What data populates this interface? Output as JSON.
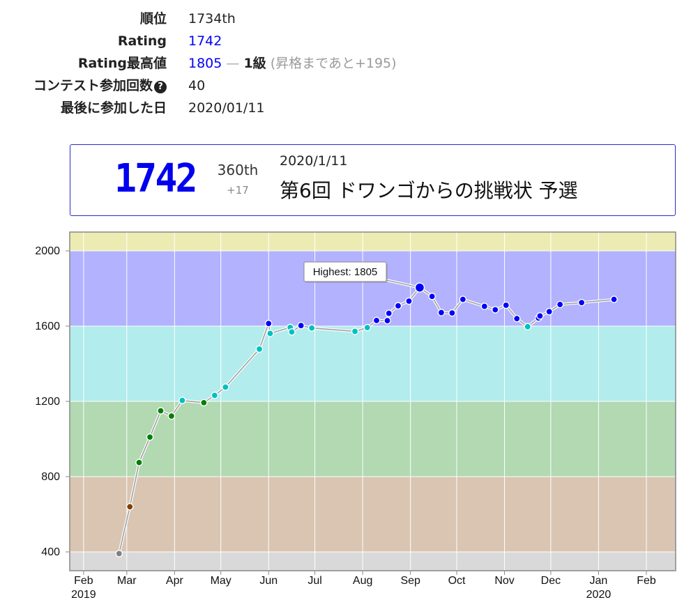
{
  "stats": {
    "rank_label": "順位",
    "rank_value": "1734th",
    "rating_label": "Rating",
    "rating_value": "1742",
    "highest_label": "Rating最高値",
    "highest_value": "1805",
    "highest_dash": "—",
    "highest_grade": "1級",
    "highest_note": "(昇格まであと+195)",
    "contests_label": "コンテスト参加回数",
    "contests_help": "?",
    "contests_value": "40",
    "last_label": "最後に参加した日",
    "last_value": "2020/01/11"
  },
  "card": {
    "rating": "1742",
    "rank": "360th",
    "diff": "+17",
    "date": "2020/1/11",
    "contest": "第6回 ドワンゴからの挑戦状 予選"
  },
  "colors": {
    "gray": "#808080",
    "brown": "#804000",
    "green": "#008000",
    "cyan": "#00c0c0",
    "blue": "#0000ff",
    "yellow": "#c0c000",
    "band_gray": "#d9d9d9",
    "band_brown": "#d9c5b2",
    "band_green": "#b2d9b2",
    "band_cyan": "#b2ecec",
    "band_blue": "#b2b2ff",
    "band_yellow": "#ececb2",
    "card_border": "#2a2ac8"
  },
  "chart_data": {
    "type": "line",
    "ylim": [
      300,
      2100
    ],
    "yticks": [
      400,
      800,
      1200,
      1600,
      2000
    ],
    "x_range": [
      "2019-01-23",
      "2020-02-20"
    ],
    "xticks": [
      {
        "date": "2019-02-01",
        "label": "Feb",
        "year": "2019"
      },
      {
        "date": "2019-03-01",
        "label": "Mar",
        "year": ""
      },
      {
        "date": "2019-04-01",
        "label": "Apr",
        "year": ""
      },
      {
        "date": "2019-05-01",
        "label": "May",
        "year": ""
      },
      {
        "date": "2019-06-01",
        "label": "Jun",
        "year": ""
      },
      {
        "date": "2019-07-01",
        "label": "Jul",
        "year": ""
      },
      {
        "date": "2019-08-01",
        "label": "Aug",
        "year": ""
      },
      {
        "date": "2019-09-01",
        "label": "Sep",
        "year": ""
      },
      {
        "date": "2019-10-01",
        "label": "Oct",
        "year": ""
      },
      {
        "date": "2019-11-01",
        "label": "Nov",
        "year": ""
      },
      {
        "date": "2019-12-01",
        "label": "Dec",
        "year": ""
      },
      {
        "date": "2020-01-01",
        "label": "Jan",
        "year": "2020"
      },
      {
        "date": "2020-02-01",
        "label": "Feb",
        "year": ""
      }
    ],
    "bands": [
      {
        "from": 0,
        "to": 400,
        "color": "#d9d9d9"
      },
      {
        "from": 400,
        "to": 800,
        "color": "#d9c5b2"
      },
      {
        "from": 800,
        "to": 1200,
        "color": "#b2d9b2"
      },
      {
        "from": 1200,
        "to": 1600,
        "color": "#b2ecec"
      },
      {
        "from": 1600,
        "to": 2000,
        "color": "#b2b2ff"
      },
      {
        "from": 2000,
        "to": 2400,
        "color": "#ececb2"
      }
    ],
    "highest": {
      "date": "2019-09-07",
      "value": 1805,
      "label": "Highest: 1805"
    },
    "series": [
      {
        "points": [
          {
            "date": "2019-02-24",
            "value": 391
          },
          {
            "date": "2019-03-03",
            "value": 640
          },
          {
            "date": "2019-03-09",
            "value": 875
          },
          {
            "date": "2019-03-16",
            "value": 1010
          },
          {
            "date": "2019-03-23",
            "value": 1150
          },
          {
            "date": "2019-03-30",
            "value": 1122
          },
          {
            "date": "2019-04-06",
            "value": 1205
          },
          {
            "date": "2019-04-20",
            "value": 1193
          },
          {
            "date": "2019-04-27",
            "value": 1232
          },
          {
            "date": "2019-05-04",
            "value": 1276
          },
          {
            "date": "2019-05-26",
            "value": 1478
          },
          {
            "date": "2019-06-01",
            "value": 1614
          },
          {
            "date": "2019-06-02",
            "value": 1561
          },
          {
            "date": "2019-06-15",
            "value": 1593
          },
          {
            "date": "2019-06-16",
            "value": 1569
          },
          {
            "date": "2019-06-22",
            "value": 1603
          },
          {
            "date": "2019-06-29",
            "value": 1590
          },
          {
            "date": "2019-07-27",
            "value": 1572
          },
          {
            "date": "2019-08-04",
            "value": 1592
          },
          {
            "date": "2019-08-10",
            "value": 1630
          },
          {
            "date": "2019-08-17",
            "value": 1629
          },
          {
            "date": "2019-08-18",
            "value": 1668
          },
          {
            "date": "2019-08-24",
            "value": 1708
          },
          {
            "date": "2019-08-31",
            "value": 1733
          },
          {
            "date": "2019-09-07",
            "value": 1805
          },
          {
            "date": "2019-09-15",
            "value": 1758
          },
          {
            "date": "2019-09-21",
            "value": 1672
          },
          {
            "date": "2019-09-28",
            "value": 1670
          },
          {
            "date": "2019-10-05",
            "value": 1742
          },
          {
            "date": "2019-10-19",
            "value": 1705
          },
          {
            "date": "2019-10-26",
            "value": 1687
          },
          {
            "date": "2019-11-02",
            "value": 1711
          },
          {
            "date": "2019-11-09",
            "value": 1640
          },
          {
            "date": "2019-11-16",
            "value": 1597
          },
          {
            "date": "2019-11-23",
            "value": 1643
          },
          {
            "date": "2019-11-24",
            "value": 1654
          },
          {
            "date": "2019-11-30",
            "value": 1677
          },
          {
            "date": "2019-12-07",
            "value": 1715
          },
          {
            "date": "2019-12-21",
            "value": 1725
          },
          {
            "date": "2020-01-11",
            "value": 1742
          }
        ]
      }
    ]
  }
}
